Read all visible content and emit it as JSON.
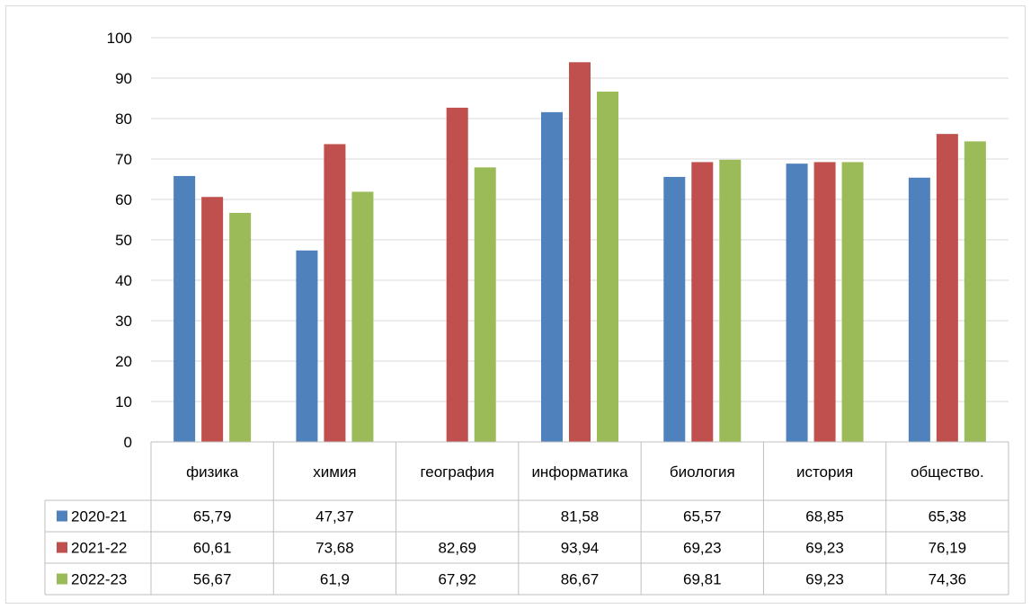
{
  "chart_data": {
    "type": "bar",
    "title": "",
    "xlabel": "",
    "ylabel": "",
    "ylim": [
      0,
      100
    ],
    "yticks": [
      0,
      10,
      20,
      30,
      40,
      50,
      60,
      70,
      80,
      90,
      100
    ],
    "grid": true,
    "legend": "data-table-left",
    "categories": [
      "физика",
      "химия",
      "география",
      "информатика",
      "биология",
      "история",
      "общество."
    ],
    "series": [
      {
        "name": "2020-21",
        "color": "#4f81bd",
        "values": [
          65.79,
          47.37,
          null,
          81.58,
          65.57,
          68.85,
          65.38
        ],
        "labels": [
          "65,79",
          "47,37",
          "",
          "81,58",
          "65,57",
          "68,85",
          "65,38"
        ]
      },
      {
        "name": "2021-22",
        "color": "#c0504d",
        "values": [
          60.61,
          73.68,
          82.69,
          93.94,
          69.23,
          69.23,
          76.19
        ],
        "labels": [
          "60,61",
          "73,68",
          "82,69",
          "93,94",
          "69,23",
          "69,23",
          "76,19"
        ]
      },
      {
        "name": "2022-23",
        "color": "#9bbb59",
        "values": [
          56.67,
          61.9,
          67.92,
          86.67,
          69.81,
          69.23,
          74.36
        ],
        "labels": [
          "56,67",
          "61,9",
          "67,92",
          "86,67",
          "69,81",
          "69,23",
          "74,36"
        ]
      }
    ]
  }
}
